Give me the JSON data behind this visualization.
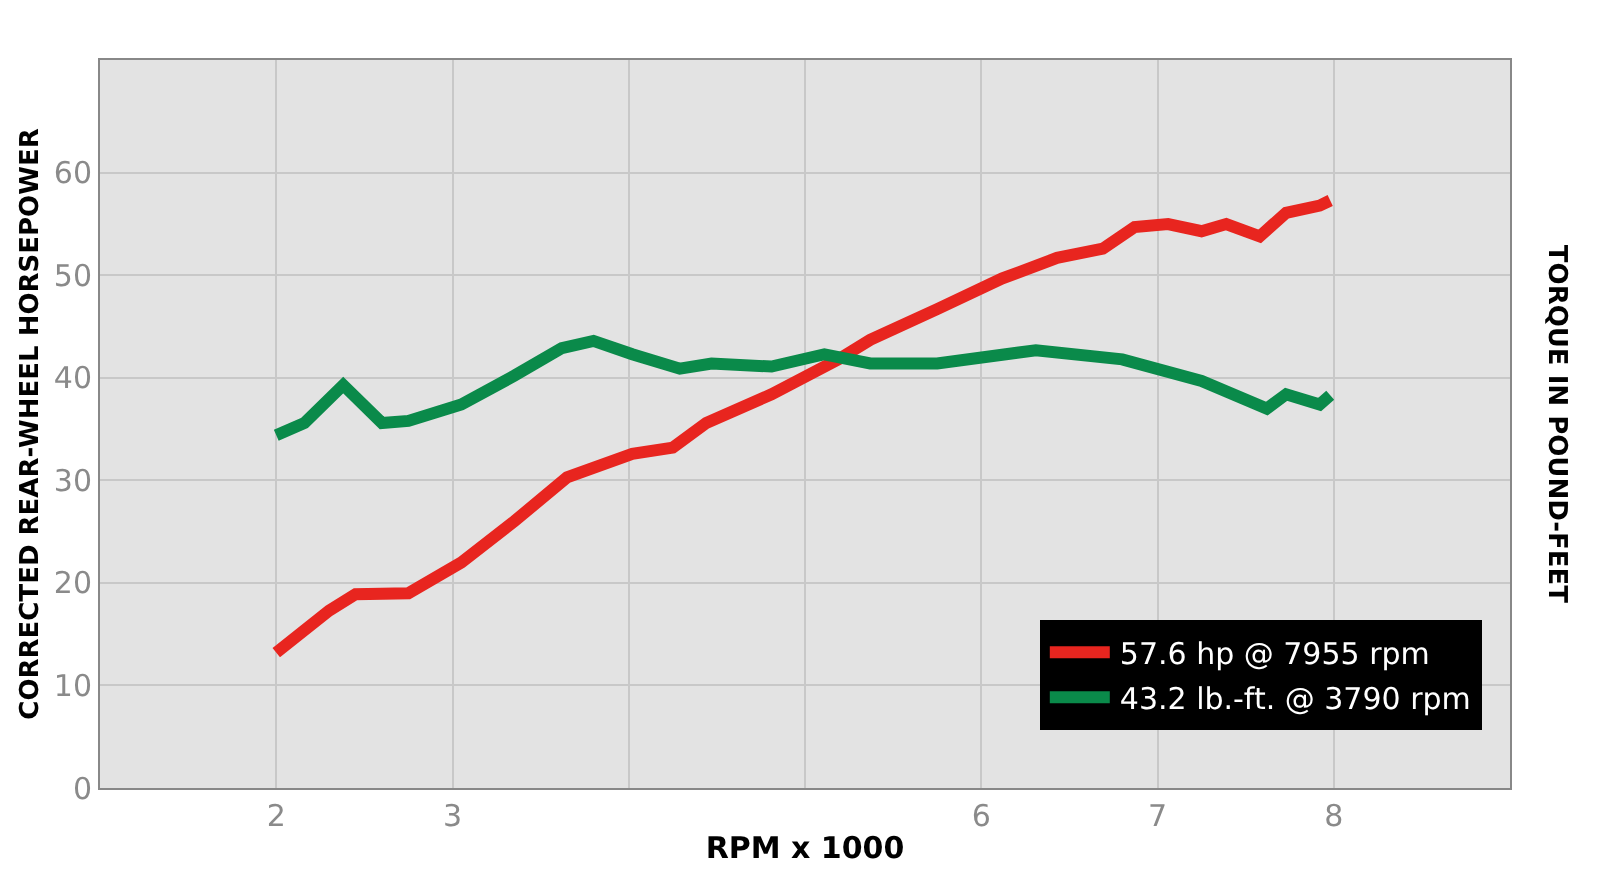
{
  "chart_data": {
    "type": "line",
    "xlabel": "RPM x 1000",
    "ylabel": "CORRECTED REAR-WHEEL HORSEPOWER",
    "y2label": "TORQUE IN POUND-FEET",
    "xlim": [
      1,
      9
    ],
    "xticks": [
      2,
      3,
      {
        "value": 4,
        "label": null
      },
      {
        "value": 5,
        "label": null
      },
      6,
      7,
      8
    ],
    "ylim": [
      0,
      71
    ],
    "yticks": [
      0,
      10,
      20,
      30,
      40,
      50,
      60
    ],
    "grid": true,
    "legend": "bottom right",
    "marker": "none",
    "line_style": "solid",
    "series": [
      {
        "name": "57.6 hp @ 7955 rpm",
        "color": "#e8251f",
        "x": [
          2.0,
          2.3,
          2.45,
          2.75,
          3.05,
          3.35,
          3.65,
          4.02,
          4.25,
          4.44,
          4.81,
          5.19,
          5.37,
          5.75,
          6.12,
          6.43,
          6.69,
          6.87,
          7.06,
          7.25,
          7.39,
          7.58,
          7.73,
          7.92,
          7.98
        ],
        "values": [
          13.2,
          17.3,
          18.9,
          19.0,
          22.0,
          26.0,
          30.3,
          32.6,
          33.2,
          35.6,
          38.4,
          41.8,
          43.7,
          46.7,
          49.7,
          51.7,
          52.6,
          54.7,
          55.0,
          54.3,
          55.0,
          53.8,
          56.1,
          56.8,
          57.3
        ]
      },
      {
        "name": "43.2 lb.-ft. @ 3790 rpm",
        "color": "#0a8a4a",
        "x": [
          2.0,
          2.16,
          2.38,
          2.6,
          2.75,
          3.05,
          3.35,
          3.62,
          3.8,
          4.02,
          4.29,
          4.47,
          4.81,
          5.11,
          5.37,
          5.75,
          6.31,
          6.8,
          7.25,
          7.62,
          7.73,
          7.92,
          7.98
        ],
        "values": [
          34.4,
          35.6,
          39.3,
          35.6,
          35.8,
          37.4,
          40.2,
          42.9,
          43.6,
          42.3,
          40.9,
          41.4,
          41.1,
          42.3,
          41.4,
          41.4,
          42.7,
          41.8,
          39.7,
          37.0,
          38.4,
          37.4,
          38.3
        ]
      }
    ]
  }
}
